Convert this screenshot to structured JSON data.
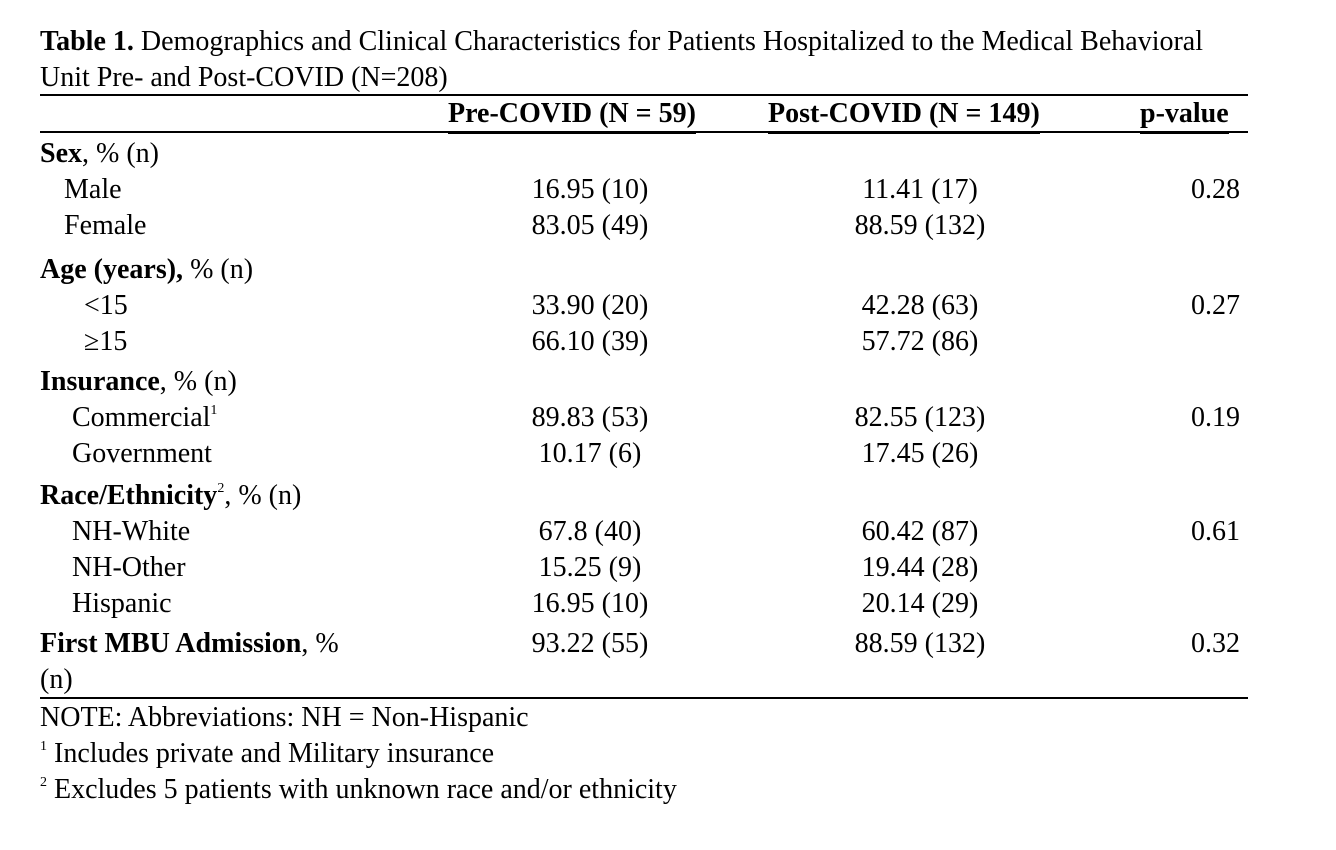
{
  "title": {
    "lead": "Table 1.",
    "text": " Demographics and Clinical Characteristics for Patients Hospitalized to the Medical Behavioral Unit Pre- and Post-COVID (N=208)"
  },
  "columns": {
    "pre": "Pre-COVID (N = 59)",
    "post": "Post-COVID (N = 149)",
    "p": "p-value"
  },
  "sex": {
    "label_bold": "Sex",
    "label_rest": ", % (n)",
    "rows": [
      {
        "label": "Male",
        "pre": "16.95 (10)",
        "post": "11.41 (17)",
        "p": "0.28"
      },
      {
        "label": "Female",
        "pre": "83.05 (49)",
        "post": "88.59 (132)",
        "p": ""
      }
    ]
  },
  "age": {
    "label_bold": "Age (years),",
    "label_rest": " % (n)",
    "rows": [
      {
        "label": "<15",
        "pre": "33.90 (20)",
        "post": "42.28 (63)",
        "p": "0.27"
      },
      {
        "label": "≥15",
        "pre": "66.10 (39)",
        "post": "57.72 (86)",
        "p": ""
      }
    ]
  },
  "insurance": {
    "label_bold": "Insurance",
    "label_rest": ", % (n)",
    "rows": [
      {
        "label": "Commercial",
        "sup": "1",
        "pre": "89.83 (53)",
        "post": "82.55 (123)",
        "p": "0.19"
      },
      {
        "label": "Government",
        "pre": "10.17 (6)",
        "post": "17.45 (26)",
        "p": ""
      }
    ]
  },
  "race": {
    "label_bold": "Race/Ethnicity",
    "sup": "2",
    "label_rest": ", % (n)",
    "rows": [
      {
        "label": "NH-White",
        "pre": "67.8 (40)",
        "post": "60.42 (87)",
        "p": "0.61"
      },
      {
        "label": "NH-Other",
        "pre": "15.25 (9)",
        "post": "19.44 (28)",
        "p": ""
      },
      {
        "label": "Hispanic",
        "pre": "16.95 (10)",
        "post": "20.14 (29)",
        "p": ""
      }
    ]
  },
  "first_admission": {
    "label_bold": "First MBU Admission",
    "label_rest": ", %",
    "label_wrap": "(n)",
    "pre": "93.22 (55)",
    "post": "88.59 (132)",
    "p": "0.32"
  },
  "notes": {
    "abbrev": "NOTE: Abbreviations: NH = Non-Hispanic",
    "n1_mark": "1",
    "n1": " Includes private and Military insurance",
    "n2_mark": "2",
    "n2": " Excludes 5 patients with unknown race and/or ethnicity"
  }
}
